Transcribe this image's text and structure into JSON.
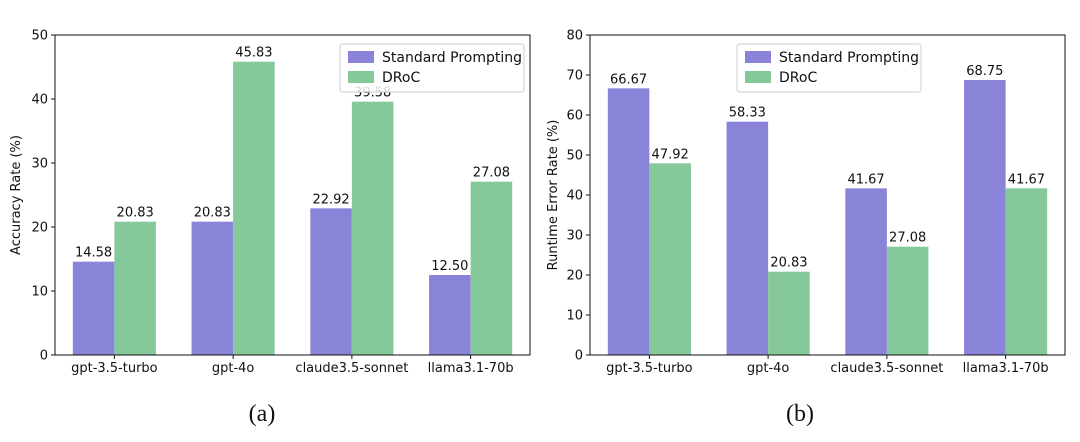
{
  "colors": {
    "standard": "#8a84d9",
    "droc": "#85c99b",
    "axis": "#111111"
  },
  "chart_data": [
    {
      "type": "bar",
      "panel_label": "(a)",
      "categories": [
        "gpt-3.5-turbo",
        "gpt-4o",
        "claude3.5-sonnet",
        "llama3.1-70b"
      ],
      "series": [
        {
          "name": "Standard Prompting",
          "values": [
            14.58,
            20.83,
            22.92,
            12.5
          ],
          "labels": [
            "14.58",
            "20.83",
            "22.92",
            "12.50"
          ]
        },
        {
          "name": "DRoC",
          "values": [
            20.83,
            45.83,
            39.58,
            27.08
          ],
          "labels": [
            "20.83",
            "45.83",
            "39.58",
            "27.08"
          ]
        }
      ],
      "title": "",
      "xlabel": "",
      "ylabel": "Accuracy Rate (%)",
      "ylim": [
        0,
        50
      ],
      "yticks": [
        0,
        10,
        20,
        30,
        40,
        50
      ],
      "ytick_labels": [
        "0",
        "10",
        "20",
        "30",
        "40",
        "50"
      ],
      "grid": false,
      "legend": "top-right"
    },
    {
      "type": "bar",
      "panel_label": "(b)",
      "categories": [
        "gpt-3.5-turbo",
        "gpt-4o",
        "claude3.5-sonnet",
        "llama3.1-70b"
      ],
      "series": [
        {
          "name": "Standard Prompting",
          "values": [
            66.67,
            58.33,
            41.67,
            68.75
          ],
          "labels": [
            "66.67",
            "58.33",
            "41.67",
            "68.75"
          ]
        },
        {
          "name": "DRoC",
          "values": [
            47.92,
            20.83,
            27.08,
            41.67
          ],
          "labels": [
            "47.92",
            "20.83",
            "27.08",
            "41.67"
          ]
        }
      ],
      "title": "",
      "xlabel": "",
      "ylabel": "Runtime Error Rate (%)",
      "ylim": [
        0,
        80
      ],
      "yticks": [
        0,
        10,
        20,
        30,
        40,
        50,
        60,
        70,
        80
      ],
      "ytick_labels": [
        "0",
        "10",
        "20",
        "30",
        "40",
        "50",
        "60",
        "70",
        "80"
      ],
      "grid": false,
      "legend": "top-center"
    }
  ]
}
